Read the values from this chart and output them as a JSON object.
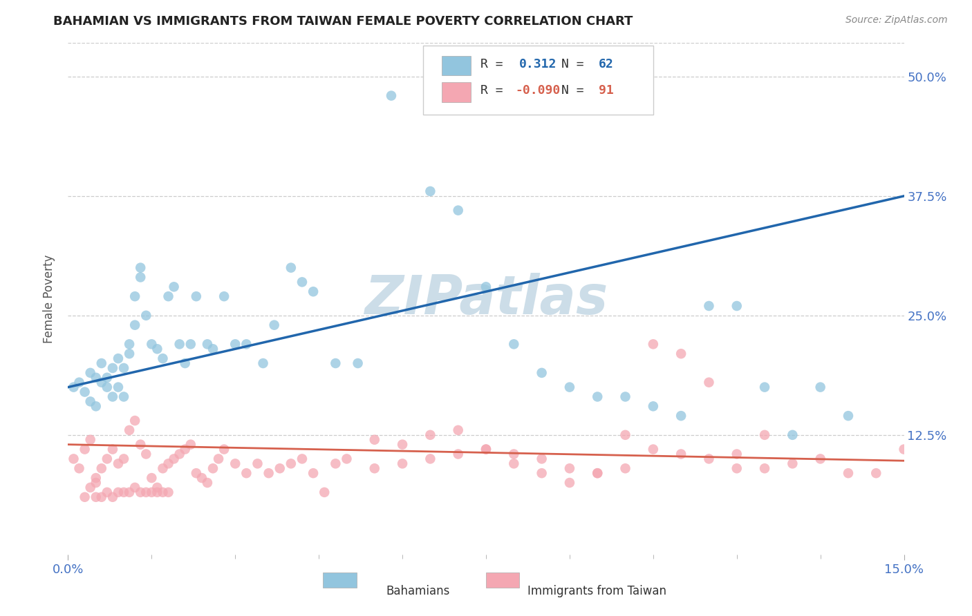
{
  "title": "BAHAMIAN VS IMMIGRANTS FROM TAIWAN FEMALE POVERTY CORRELATION CHART",
  "source": "Source: ZipAtlas.com",
  "ylabel": "Female Poverty",
  "ytick_labels": [
    "50.0%",
    "37.5%",
    "25.0%",
    "12.5%"
  ],
  "ytick_values": [
    0.5,
    0.375,
    0.25,
    0.125
  ],
  "xmin": 0.0,
  "xmax": 0.15,
  "ymin": 0.0,
  "ymax": 0.535,
  "blue_color": "#92c5de",
  "blue_line_color": "#2166ac",
  "pink_color": "#f4a7b2",
  "pink_line_color": "#d6604d",
  "blue_R": 0.312,
  "blue_N": 62,
  "pink_R": -0.09,
  "pink_N": 91,
  "watermark": "ZIPatlas",
  "watermark_color": "#ccdde8",
  "legend_label_blue": "Bahamians",
  "legend_label_pink": "Immigrants from Taiwan",
  "blue_line_x0": 0.0,
  "blue_line_x1": 0.15,
  "blue_line_y0": 0.175,
  "blue_line_y1": 0.375,
  "pink_line_x0": 0.0,
  "pink_line_x1": 0.15,
  "pink_line_y0": 0.115,
  "pink_line_y1": 0.098,
  "blue_pts_x": [
    0.001,
    0.002,
    0.003,
    0.004,
    0.004,
    0.005,
    0.005,
    0.006,
    0.006,
    0.007,
    0.007,
    0.008,
    0.008,
    0.009,
    0.009,
    0.01,
    0.01,
    0.011,
    0.011,
    0.012,
    0.012,
    0.013,
    0.013,
    0.014,
    0.015,
    0.016,
    0.017,
    0.018,
    0.019,
    0.02,
    0.021,
    0.022,
    0.023,
    0.025,
    0.026,
    0.028,
    0.03,
    0.032,
    0.035,
    0.037,
    0.04,
    0.042,
    0.044,
    0.048,
    0.052,
    0.058,
    0.065,
    0.07,
    0.075,
    0.08,
    0.085,
    0.09,
    0.095,
    0.1,
    0.105,
    0.11,
    0.115,
    0.12,
    0.125,
    0.13,
    0.135,
    0.14
  ],
  "blue_pts_y": [
    0.175,
    0.18,
    0.17,
    0.16,
    0.19,
    0.155,
    0.185,
    0.18,
    0.2,
    0.175,
    0.185,
    0.165,
    0.195,
    0.175,
    0.205,
    0.165,
    0.195,
    0.21,
    0.22,
    0.24,
    0.27,
    0.29,
    0.3,
    0.25,
    0.22,
    0.215,
    0.205,
    0.27,
    0.28,
    0.22,
    0.2,
    0.22,
    0.27,
    0.22,
    0.215,
    0.27,
    0.22,
    0.22,
    0.2,
    0.24,
    0.3,
    0.285,
    0.275,
    0.2,
    0.2,
    0.48,
    0.38,
    0.36,
    0.28,
    0.22,
    0.19,
    0.175,
    0.165,
    0.165,
    0.155,
    0.145,
    0.26,
    0.26,
    0.175,
    0.125,
    0.175,
    0.145
  ],
  "pink_pts_x": [
    0.001,
    0.002,
    0.003,
    0.003,
    0.004,
    0.004,
    0.005,
    0.005,
    0.005,
    0.006,
    0.006,
    0.007,
    0.007,
    0.008,
    0.008,
    0.009,
    0.009,
    0.01,
    0.01,
    0.011,
    0.011,
    0.012,
    0.012,
    0.013,
    0.013,
    0.014,
    0.014,
    0.015,
    0.015,
    0.016,
    0.016,
    0.017,
    0.017,
    0.018,
    0.018,
    0.019,
    0.02,
    0.021,
    0.022,
    0.023,
    0.024,
    0.025,
    0.026,
    0.027,
    0.028,
    0.03,
    0.032,
    0.034,
    0.036,
    0.038,
    0.04,
    0.042,
    0.044,
    0.046,
    0.048,
    0.05,
    0.055,
    0.06,
    0.065,
    0.07,
    0.075,
    0.08,
    0.085,
    0.09,
    0.095,
    0.1,
    0.105,
    0.11,
    0.115,
    0.12,
    0.125,
    0.13,
    0.135,
    0.14,
    0.145,
    0.15,
    0.055,
    0.06,
    0.065,
    0.07,
    0.075,
    0.08,
    0.085,
    0.09,
    0.095,
    0.1,
    0.105,
    0.11,
    0.115,
    0.12,
    0.125
  ],
  "pink_pts_y": [
    0.1,
    0.09,
    0.11,
    0.06,
    0.12,
    0.07,
    0.08,
    0.075,
    0.06,
    0.09,
    0.06,
    0.1,
    0.065,
    0.11,
    0.06,
    0.095,
    0.065,
    0.1,
    0.065,
    0.13,
    0.065,
    0.14,
    0.07,
    0.115,
    0.065,
    0.105,
    0.065,
    0.08,
    0.065,
    0.07,
    0.065,
    0.09,
    0.065,
    0.095,
    0.065,
    0.1,
    0.105,
    0.11,
    0.115,
    0.085,
    0.08,
    0.075,
    0.09,
    0.1,
    0.11,
    0.095,
    0.085,
    0.095,
    0.085,
    0.09,
    0.095,
    0.1,
    0.085,
    0.065,
    0.095,
    0.1,
    0.09,
    0.095,
    0.1,
    0.105,
    0.11,
    0.095,
    0.085,
    0.075,
    0.085,
    0.09,
    0.22,
    0.21,
    0.18,
    0.105,
    0.09,
    0.095,
    0.1,
    0.085,
    0.085,
    0.11,
    0.12,
    0.115,
    0.125,
    0.13,
    0.11,
    0.105,
    0.1,
    0.09,
    0.085,
    0.125,
    0.11,
    0.105,
    0.1,
    0.09,
    0.125
  ]
}
